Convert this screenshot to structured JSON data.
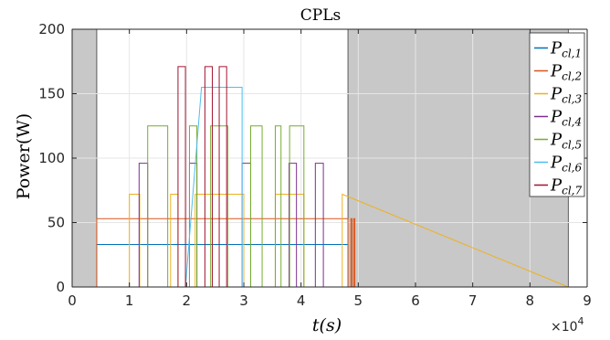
{
  "chart_data": {
    "type": "line",
    "title": "CPLs",
    "xlabel": "t(s)",
    "ylabel": "Power(W)",
    "xlim": [
      0,
      90000
    ],
    "ylim": [
      0,
      200
    ],
    "xticks": [
      0,
      10000,
      20000,
      30000,
      40000,
      50000,
      60000,
      70000,
      80000,
      90000
    ],
    "xtick_labels": [
      "0",
      "1",
      "2",
      "3",
      "4",
      "5",
      "6",
      "7",
      "8",
      "9"
    ],
    "x_exponent_label": "×10",
    "x_exponent_power": "4",
    "yticks": [
      0,
      50,
      100,
      150,
      200
    ],
    "ytick_labels": [
      "0",
      "50",
      "100",
      "150",
      "200"
    ],
    "grid": true,
    "legend_position": "top-right",
    "shaded_regions": [
      {
        "x_start": 0,
        "x_end": 4300,
        "y_max": 200,
        "color": "#c8c8c8"
      },
      {
        "x_start": 48200,
        "x_end": 86700,
        "y_max": 200,
        "color": "#c8c8c8"
      }
    ],
    "series": [
      {
        "name": "P_{cl,1}",
        "label_main": "P",
        "label_sub": "cl,1",
        "color": "#0072BD",
        "lw": 1.0,
        "x": [
          0,
          4300,
          4300,
          48200,
          48200,
          86700
        ],
        "y": [
          0,
          0,
          33,
          33,
          0,
          0
        ]
      },
      {
        "name": "P_{cl,2}",
        "label_main": "P",
        "label_sub": "cl,2",
        "color": "#D95319",
        "lw": 1.0,
        "x": [
          0,
          4300,
          4300,
          48200,
          48200,
          48700,
          48700,
          48900,
          48900,
          49200,
          49200,
          49400,
          49400,
          86700
        ],
        "y": [
          0,
          0,
          53,
          53,
          0,
          0,
          53,
          53,
          0,
          0,
          53,
          53,
          0,
          0
        ]
      },
      {
        "name": "P_{cl,3}",
        "label_main": "P",
        "label_sub": "cl,3",
        "color": "#EDB120",
        "lw": 1.0,
        "x": [
          0,
          10000,
          10000,
          11800,
          11800,
          17200,
          17200,
          18500,
          18500,
          21500,
          21500,
          30000,
          30000,
          35500,
          35500,
          40500,
          40500,
          47200,
          47200,
          86700
        ],
        "y": [
          0,
          0,
          72,
          72,
          0,
          0,
          72,
          72,
          0,
          0,
          72,
          72,
          0,
          0,
          72,
          72,
          0,
          0,
          72,
          0
        ]
      },
      {
        "name": "P_{cl,4}",
        "label_main": "P",
        "label_sub": "cl,4",
        "color": "#7E2F8E",
        "lw": 1.0,
        "x": [
          0,
          11700,
          11700,
          13200,
          13200,
          20500,
          20500,
          21800,
          21800,
          29700,
          29700,
          31200,
          31200,
          37900,
          37900,
          39200,
          39200,
          42500,
          42500,
          43900,
          43900,
          86700
        ],
        "y": [
          0,
          0,
          96,
          96,
          0,
          0,
          96,
          96,
          0,
          0,
          96,
          96,
          0,
          0,
          96,
          96,
          0,
          0,
          96,
          96,
          0,
          0
        ]
      },
      {
        "name": "P_{cl,5}",
        "label_main": "P",
        "label_sub": "cl,5",
        "color": "#77AC30",
        "lw": 1.0,
        "x": [
          0,
          13200,
          13200,
          16700,
          16700,
          20500,
          20500,
          21800,
          21800,
          24200,
          24200,
          27200,
          27200,
          31200,
          31200,
          33200,
          33200,
          35500,
          35500,
          36500,
          36500,
          38000,
          38000,
          40500,
          40500,
          41800,
          41800,
          86700
        ],
        "y": [
          0,
          0,
          125,
          125,
          0,
          0,
          125,
          125,
          0,
          0,
          125,
          125,
          0,
          0,
          125,
          125,
          0,
          0,
          125,
          125,
          0,
          0,
          125,
          125,
          0,
          0,
          0,
          0
        ]
      },
      {
        "name": "P_{cl,6}",
        "label_main": "P",
        "label_sub": "cl,6",
        "color": "#4DBEEE",
        "lw": 1.0,
        "x": [
          0,
          19800,
          19800,
          22600,
          22600,
          27000,
          27000,
          29700,
          29700,
          86700
        ],
        "y": [
          0,
          0,
          0,
          155,
          155,
          155,
          155,
          155,
          0,
          0
        ]
      },
      {
        "name": "P_{cl,7}",
        "label_main": "P",
        "label_sub": "cl,7",
        "color": "#A2142F",
        "lw": 1.0,
        "x": [
          0,
          18500,
          18500,
          19800,
          19800,
          23200,
          23200,
          24500,
          24500,
          25700,
          25700,
          27000,
          27000,
          86700
        ],
        "y": [
          0,
          0,
          171,
          171,
          0,
          0,
          171,
          171,
          0,
          0,
          171,
          171,
          0,
          0
        ]
      }
    ]
  }
}
